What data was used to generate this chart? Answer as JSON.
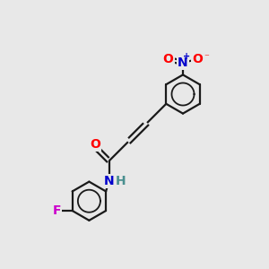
{
  "bg_color": "#e8e8e8",
  "bond_color": "#1a1a1a",
  "atom_colors": {
    "O": "#ff0000",
    "N_nitro": "#0000cc",
    "N_amide": "#0000cc",
    "H": "#4a9090",
    "F": "#cc00cc",
    "C": "#1a1a1a"
  },
  "figsize": [
    3.0,
    3.0
  ],
  "dpi": 100,
  "bond_lw": 1.6,
  "ring_lw": 1.6,
  "inner_lw": 1.3,
  "font_size": 10
}
